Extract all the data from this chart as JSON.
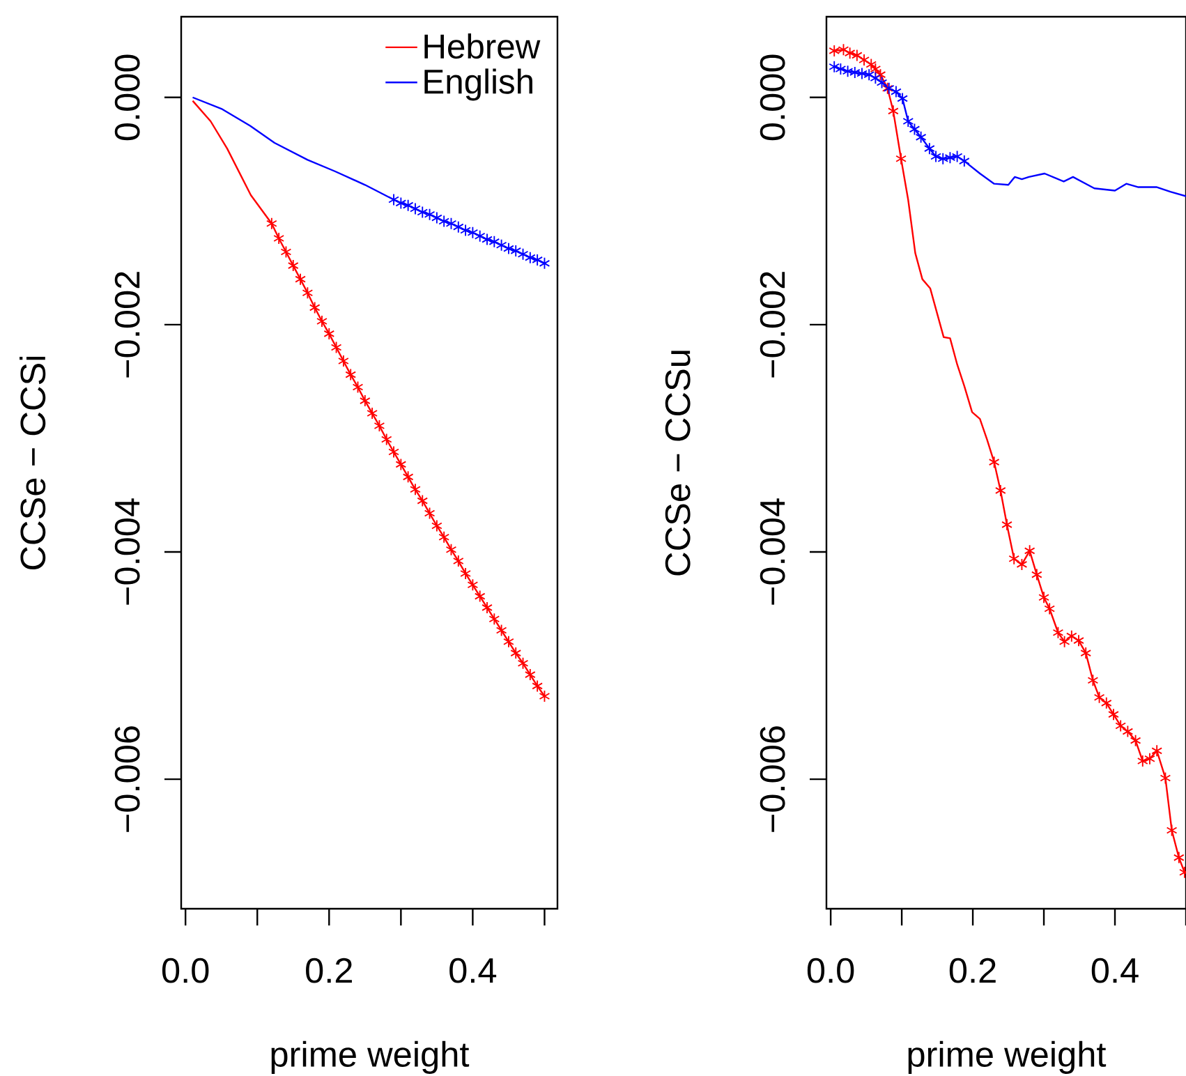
{
  "chart_data": [
    {
      "type": "line",
      "xlabel": "prime weight",
      "ylabel": "CCSe − CCSi",
      "legend": "top right",
      "xlim": [
        -0.006,
        0.518
      ],
      "ylim": [
        -0.00714,
        0.00071
      ],
      "xticks": [
        {
          "value": 0,
          "label": "0.0"
        },
        {
          "value": 0.1,
          "label": null
        },
        {
          "value": 0.2,
          "label": "0.2"
        },
        {
          "value": 0.3,
          "label": null
        },
        {
          "value": 0.4,
          "label": "0.4"
        },
        {
          "value": 0.5,
          "label": null
        }
      ],
      "yticks": [
        {
          "value": 0,
          "label": "0.000"
        },
        {
          "value": -0.002,
          "label": "−0.002"
        },
        {
          "value": -0.004,
          "label": "−0.004"
        },
        {
          "value": -0.006,
          "label": "−0.006"
        }
      ],
      "series": [
        {
          "name": "Hebrew",
          "color": "#ff0000",
          "x": [
            0.01,
            0.035,
            0.058,
            0.091,
            0.12,
            0.13,
            0.14,
            0.15,
            0.16,
            0.17,
            0.18,
            0.19,
            0.2,
            0.21,
            0.22,
            0.23,
            0.24,
            0.25,
            0.26,
            0.27,
            0.28,
            0.29,
            0.3,
            0.31,
            0.32,
            0.33,
            0.34,
            0.35,
            0.36,
            0.37,
            0.38,
            0.39,
            0.4,
            0.41,
            0.42,
            0.43,
            0.44,
            0.45,
            0.46,
            0.47,
            0.48,
            0.49,
            0.5
          ],
          "values": [
            -3e-05,
            -0.00021,
            -0.00045,
            -0.00086,
            -0.00111,
            -0.00124,
            -0.00136,
            -0.00148,
            -0.0016,
            -0.00172,
            -0.00185,
            -0.00197,
            -0.00208,
            -0.0022,
            -0.00232,
            -0.00244,
            -0.00255,
            -0.00267,
            -0.00278,
            -0.00289,
            -0.00301,
            -0.00312,
            -0.00323,
            -0.00334,
            -0.00345,
            -0.00355,
            -0.00366,
            -0.00377,
            -0.00387,
            -0.00398,
            -0.00408,
            -0.00419,
            -0.00429,
            -0.00439,
            -0.00449,
            -0.00459,
            -0.00469,
            -0.00479,
            -0.00489,
            -0.00498,
            -0.00508,
            -0.00518,
            -0.00527
          ]
        },
        {
          "name": "English",
          "color": "#0000ff",
          "x": [
            0.01,
            0.05,
            0.09,
            0.124,
            0.17,
            0.208,
            0.25,
            0.29,
            0.3,
            0.31,
            0.32,
            0.33,
            0.34,
            0.35,
            0.36,
            0.37,
            0.38,
            0.39,
            0.4,
            0.41,
            0.42,
            0.43,
            0.44,
            0.45,
            0.46,
            0.47,
            0.48,
            0.49,
            0.5
          ],
          "values": [
            0,
            -0.0001,
            -0.00025,
            -0.0004,
            -0.00055,
            -0.00065,
            -0.00077,
            -0.0009,
            -0.00093,
            -0.00095,
            -0.00098,
            -0.00101,
            -0.00103,
            -0.00106,
            -0.00109,
            -0.00111,
            -0.00114,
            -0.00117,
            -0.00119,
            -0.00122,
            -0.00125,
            -0.00127,
            -0.0013,
            -0.00133,
            -0.00135,
            -0.00138,
            -0.00141,
            -0.00143,
            -0.00146
          ]
        },
        {
          "type": "scatter",
          "marker": "cross",
          "color": "#ff0000",
          "x": [
            0.12,
            0.13,
            0.14,
            0.15,
            0.16,
            0.17,
            0.18,
            0.19,
            0.2,
            0.21,
            0.22,
            0.23,
            0.24,
            0.25,
            0.26,
            0.27,
            0.28,
            0.29,
            0.3,
            0.31,
            0.32,
            0.33,
            0.34,
            0.35,
            0.36,
            0.37,
            0.38,
            0.39,
            0.4,
            0.41,
            0.42,
            0.43,
            0.44,
            0.45,
            0.46,
            0.47,
            0.48,
            0.49,
            0.5
          ],
          "values": [
            -0.00111,
            -0.00124,
            -0.00136,
            -0.00148,
            -0.0016,
            -0.00172,
            -0.00185,
            -0.00197,
            -0.00208,
            -0.0022,
            -0.00232,
            -0.00244,
            -0.00255,
            -0.00267,
            -0.00278,
            -0.00289,
            -0.00301,
            -0.00312,
            -0.00323,
            -0.00334,
            -0.00345,
            -0.00355,
            -0.00366,
            -0.00377,
            -0.00387,
            -0.00398,
            -0.00408,
            -0.00419,
            -0.00429,
            -0.00439,
            -0.00449,
            -0.00459,
            -0.00469,
            -0.00479,
            -0.00489,
            -0.00498,
            -0.00508,
            -0.00518,
            -0.00527
          ]
        },
        {
          "type": "scatter",
          "marker": "cross",
          "color": "#0000ff",
          "x": [
            0.29,
            0.3,
            0.31,
            0.32,
            0.33,
            0.34,
            0.35,
            0.36,
            0.37,
            0.38,
            0.39,
            0.4,
            0.41,
            0.42,
            0.43,
            0.44,
            0.45,
            0.46,
            0.47,
            0.48,
            0.49,
            0.5
          ],
          "values": [
            -0.0009,
            -0.00093,
            -0.00095,
            -0.00098,
            -0.00101,
            -0.00103,
            -0.00106,
            -0.00109,
            -0.00111,
            -0.00114,
            -0.00117,
            -0.00119,
            -0.00122,
            -0.00125,
            -0.00127,
            -0.0013,
            -0.00133,
            -0.00135,
            -0.00138,
            -0.00141,
            -0.00143,
            -0.00146
          ]
        }
      ]
    },
    {
      "type": "line",
      "xlabel": "prime weight",
      "ylabel": "CCSe − CCSu",
      "xlim": [
        -0.006,
        0.5
      ],
      "ylim": [
        -0.00714,
        0.00071
      ],
      "xticks": [
        {
          "value": 0,
          "label": "0.0"
        },
        {
          "value": 0.1,
          "label": null
        },
        {
          "value": 0.2,
          "label": "0.2"
        },
        {
          "value": 0.3,
          "label": null
        },
        {
          "value": 0.4,
          "label": "0.4"
        },
        {
          "value": 0.5,
          "label": null
        }
      ],
      "yticks": [
        {
          "value": 0,
          "label": "0.000"
        },
        {
          "value": -0.002,
          "label": "−0.002"
        },
        {
          "value": -0.004,
          "label": "−0.004"
        },
        {
          "value": -0.006,
          "label": "−0.006"
        }
      ],
      "series": [
        {
          "color": "#ff0000",
          "x": [
            0.005,
            0.018,
            0.027,
            0.037,
            0.047,
            0.057,
            0.063,
            0.07,
            0.08,
            0.088,
            0.099,
            0.109,
            0.119,
            0.129,
            0.14,
            0.159,
            0.168,
            0.178,
            0.188,
            0.199,
            0.21,
            0.22,
            0.23,
            0.239,
            0.248,
            0.258,
            0.269,
            0.28,
            0.29,
            0.3,
            0.308,
            0.32,
            0.329,
            0.339,
            0.349,
            0.359,
            0.369,
            0.378,
            0.388,
            0.398,
            0.408,
            0.418,
            0.429,
            0.439,
            0.449,
            0.459,
            0.471,
            0.48,
            0.49,
            0.498
          ],
          "values": [
            0.00041,
            0.00042,
            0.00039,
            0.00037,
            0.00033,
            0.00029,
            0.00025,
            0.0002,
            8e-05,
            -0.00012,
            -0.00054,
            -0.0009,
            -0.00137,
            -0.0016,
            -0.00168,
            -0.00211,
            -0.00212,
            -0.00235,
            -0.00254,
            -0.00277,
            -0.00283,
            -0.00301,
            -0.00321,
            -0.00346,
            -0.00376,
            -0.00406,
            -0.00411,
            -0.00399,
            -0.0042,
            -0.0044,
            -0.0045,
            -0.00471,
            -0.00479,
            -0.00474,
            -0.00478,
            -0.00489,
            -0.00513,
            -0.00528,
            -0.00533,
            -0.00543,
            -0.00553,
            -0.00558,
            -0.00566,
            -0.00584,
            -0.00582,
            -0.00575,
            -0.00599,
            -0.00645,
            -0.00669,
            -0.00682
          ]
        },
        {
          "color": "#0000ff",
          "x": [
            0.005,
            0.014,
            0.024,
            0.034,
            0.044,
            0.054,
            0.063,
            0.072,
            0.082,
            0.092,
            0.101,
            0.109,
            0.118,
            0.127,
            0.139,
            0.148,
            0.158,
            0.168,
            0.178,
            0.188,
            0.21,
            0.23,
            0.25,
            0.259,
            0.269,
            0.279,
            0.301,
            0.328,
            0.341,
            0.371,
            0.4,
            0.416,
            0.433,
            0.459,
            0.478,
            0.5
          ],
          "values": [
            0.00027,
            0.00025,
            0.00023,
            0.00022,
            0.00021,
            0.0002,
            0.00017,
            0.00013,
            8e-05,
            5e-05,
            -1e-05,
            -0.00021,
            -0.00028,
            -0.00035,
            -0.00045,
            -0.00052,
            -0.00054,
            -0.00053,
            -0.00052,
            -0.00056,
            -0.00067,
            -0.00076,
            -0.00077,
            -0.0007,
            -0.00072,
            -0.0007,
            -0.00067,
            -0.00074,
            -0.0007,
            -0.0008,
            -0.00082,
            -0.00076,
            -0.00079,
            -0.00079,
            -0.00083,
            -0.00087
          ]
        },
        {
          "type": "scatter",
          "marker": "cross",
          "color": "#ff0000",
          "x": [
            0.005,
            0.018,
            0.027,
            0.037,
            0.047,
            0.057,
            0.063,
            0.07,
            0.08,
            0.088,
            0.099,
            0.23,
            0.239,
            0.248,
            0.258,
            0.269,
            0.28,
            0.29,
            0.3,
            0.308,
            0.32,
            0.329,
            0.339,
            0.349,
            0.359,
            0.369,
            0.378,
            0.388,
            0.398,
            0.408,
            0.418,
            0.429,
            0.439,
            0.449,
            0.459,
            0.471,
            0.48,
            0.49,
            0.498
          ],
          "values": [
            0.00041,
            0.00042,
            0.00039,
            0.00037,
            0.00033,
            0.00029,
            0.00025,
            0.0002,
            8e-05,
            -0.00012,
            -0.00054,
            -0.00321,
            -0.00346,
            -0.00376,
            -0.00406,
            -0.00411,
            -0.00399,
            -0.0042,
            -0.0044,
            -0.0045,
            -0.00471,
            -0.00479,
            -0.00474,
            -0.00478,
            -0.00489,
            -0.00513,
            -0.00528,
            -0.00533,
            -0.00543,
            -0.00553,
            -0.00558,
            -0.00566,
            -0.00584,
            -0.00582,
            -0.00575,
            -0.00599,
            -0.00645,
            -0.00669,
            -0.00682
          ]
        },
        {
          "type": "scatter",
          "marker": "cross",
          "color": "#0000ff",
          "x": [
            0.005,
            0.014,
            0.024,
            0.034,
            0.044,
            0.054,
            0.063,
            0.072,
            0.082,
            0.092,
            0.101,
            0.109,
            0.118,
            0.127,
            0.139,
            0.148,
            0.158,
            0.168,
            0.178,
            0.188
          ],
          "values": [
            0.00027,
            0.00025,
            0.00023,
            0.00022,
            0.00021,
            0.0002,
            0.00017,
            0.00013,
            8e-05,
            5e-05,
            -1e-05,
            -0.00021,
            -0.00028,
            -0.00035,
            -0.00045,
            -0.00052,
            -0.00054,
            -0.00053,
            -0.00052,
            -0.00056
          ]
        }
      ]
    }
  ]
}
